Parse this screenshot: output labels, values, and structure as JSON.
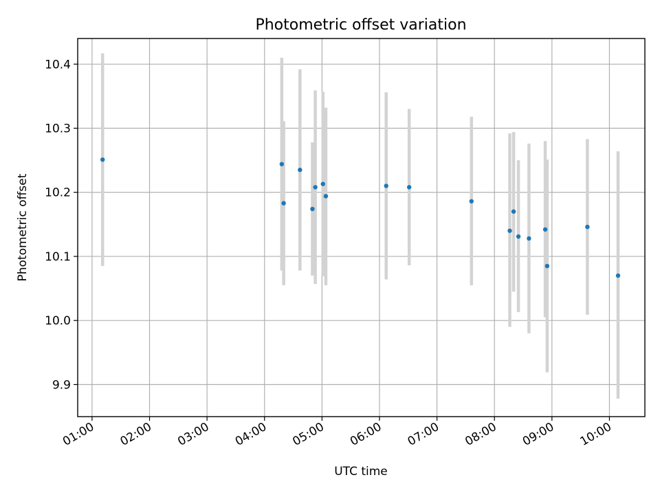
{
  "chart_data": {
    "type": "scatter",
    "title": "Photometric offset variation",
    "xlabel": "UTC time",
    "ylabel": "Photometric offset",
    "xlim": [
      "00:45",
      "10:37"
    ],
    "ylim": [
      9.85,
      10.44
    ],
    "x_ticks": [
      "01:00",
      "02:00",
      "03:00",
      "04:00",
      "05:00",
      "06:00",
      "07:00",
      "08:00",
      "09:00",
      "10:00"
    ],
    "y_ticks": [
      9.9,
      10.0,
      10.1,
      10.2,
      10.3,
      10.4
    ],
    "y_tick_labels": [
      "9.9",
      "10.0",
      "10.1",
      "10.2",
      "10.3",
      "10.4"
    ],
    "grid": true,
    "colors": {
      "point": "#1f77b4",
      "errorbar": "#d3d3d3",
      "grid": "#b0b0b0"
    },
    "points": [
      {
        "x": "01:11",
        "y": 10.251,
        "ylow": 10.085,
        "yhigh": 10.417
      },
      {
        "x": "04:18",
        "y": 10.244,
        "ylow": 10.078,
        "yhigh": 10.41
      },
      {
        "x": "04:20",
        "y": 10.183,
        "ylow": 10.055,
        "yhigh": 10.311
      },
      {
        "x": "04:37",
        "y": 10.235,
        "ylow": 10.078,
        "yhigh": 10.392
      },
      {
        "x": "04:50",
        "y": 10.174,
        "ylow": 10.07,
        "yhigh": 10.278
      },
      {
        "x": "04:53",
        "y": 10.208,
        "ylow": 10.057,
        "yhigh": 10.359
      },
      {
        "x": "05:01",
        "y": 10.213,
        "ylow": 10.069,
        "yhigh": 10.357
      },
      {
        "x": "05:04",
        "y": 10.194,
        "ylow": 10.055,
        "yhigh": 10.332
      },
      {
        "x": "06:07",
        "y": 10.21,
        "ylow": 10.064,
        "yhigh": 10.356
      },
      {
        "x": "06:31",
        "y": 10.208,
        "ylow": 10.086,
        "yhigh": 10.33
      },
      {
        "x": "07:36",
        "y": 10.186,
        "ylow": 10.055,
        "yhigh": 10.318
      },
      {
        "x": "08:16",
        "y": 10.14,
        "ylow": 9.99,
        "yhigh": 10.292
      },
      {
        "x": "08:20",
        "y": 10.17,
        "ylow": 10.045,
        "yhigh": 10.294
      },
      {
        "x": "08:25",
        "y": 10.131,
        "ylow": 10.013,
        "yhigh": 10.25
      },
      {
        "x": "08:36",
        "y": 10.128,
        "ylow": 9.98,
        "yhigh": 10.276
      },
      {
        "x": "08:53",
        "y": 10.142,
        "ylow": 10.005,
        "yhigh": 10.28
      },
      {
        "x": "08:55",
        "y": 10.085,
        "ylow": 9.919,
        "yhigh": 10.251
      },
      {
        "x": "09:37",
        "y": 10.146,
        "ylow": 10.009,
        "yhigh": 10.283
      },
      {
        "x": "10:09",
        "y": 10.07,
        "ylow": 9.878,
        "yhigh": 10.264
      }
    ]
  }
}
